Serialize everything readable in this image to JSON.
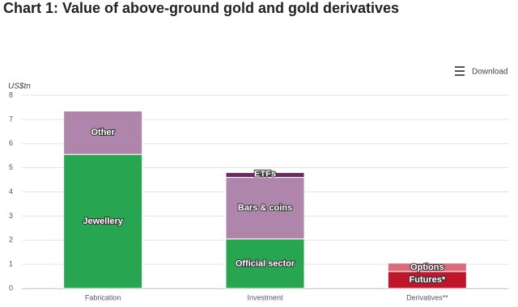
{
  "chart_data": {
    "type": "stacked-bar",
    "title": "Chart 1: Value of above-ground gold and gold derivatives",
    "y_label": "US$tn",
    "categories": [
      "Fabrication",
      "Investment",
      "Derivatives**"
    ],
    "series": [
      {
        "name": "Jewellery",
        "color": "#27a550",
        "values": [
          5.55,
          null,
          null
        ]
      },
      {
        "name": "Other",
        "color": "#b085ab",
        "values": [
          1.8,
          null,
          null
        ]
      },
      {
        "name": "Official sector",
        "color": "#27a550",
        "values": [
          null,
          2.05,
          null
        ]
      },
      {
        "name": "Bars & coins",
        "color": "#b085ab",
        "values": [
          null,
          2.55,
          null
        ]
      },
      {
        "name": "ETFs",
        "color": "#6b2a63",
        "values": [
          null,
          0.2,
          null
        ]
      },
      {
        "name": "Futures*",
        "color": "#c0162c",
        "values": [
          null,
          null,
          0.7
        ]
      },
      {
        "name": "Options",
        "color": "#d96b7a",
        "values": [
          null,
          null,
          0.35
        ]
      }
    ],
    "ylim": [
      0,
      8
    ],
    "yticks": [
      0,
      1,
      2,
      3,
      4,
      5,
      6,
      7,
      8
    ],
    "grid": true
  },
  "toolbar": {
    "download": "Download"
  }
}
